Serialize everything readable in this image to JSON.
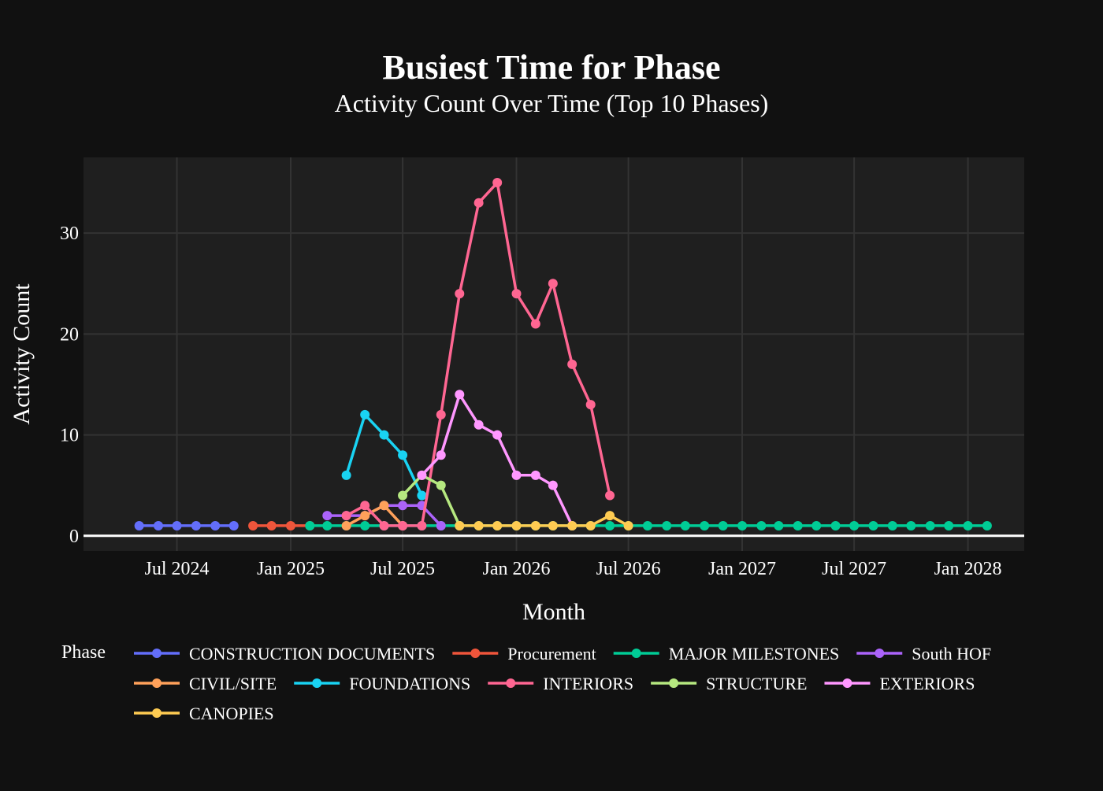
{
  "chart_data": {
    "type": "line",
    "title": "Busiest Time for Phase",
    "subtitle": "Activity Count Over Time (Top 10 Phases)",
    "xlabel": "Month",
    "ylabel": "Activity Count",
    "legend_title": "Phase",
    "legend_position": "bottom",
    "grid": true,
    "x_range": [
      "2024-02-01",
      "2028-04-01"
    ],
    "ylim": [
      -1.5,
      37.5
    ],
    "x_ticks": [
      "2024-07-01",
      "2025-01-01",
      "2025-07-01",
      "2026-01-01",
      "2026-07-01",
      "2027-01-01",
      "2027-07-01",
      "2028-01-01"
    ],
    "x_tick_labels": [
      "Jul 2024",
      "Jan 2025",
      "Jul 2025",
      "Jan 2026",
      "Jul 2026",
      "Jan 2027",
      "Jul 2027",
      "Jan 2028"
    ],
    "y_ticks": [
      0,
      10,
      20,
      30
    ],
    "y_tick_labels": [
      "0",
      "10",
      "20",
      "30"
    ],
    "series": [
      {
        "name": "CONSTRUCTION DOCUMENTS",
        "color": "#636efa",
        "x": [
          "2024-05-01",
          "2024-06-01",
          "2024-07-01",
          "2024-08-01",
          "2024-09-01",
          "2024-10-01"
        ],
        "y": [
          1,
          1,
          1,
          1,
          1,
          1
        ]
      },
      {
        "name": "Procurement",
        "color": "#EF553B",
        "x": [
          "2024-11-01",
          "2024-12-01",
          "2025-01-01",
          "2025-02-01"
        ],
        "y": [
          1,
          1,
          1,
          1
        ]
      },
      {
        "name": "MAJOR MILESTONES",
        "color": "#00cc96",
        "x": [
          "2025-02-01",
          "2025-03-01",
          "2025-04-01",
          "2025-05-01",
          "2025-06-01",
          "2025-07-01",
          "2025-08-01",
          "2025-09-01",
          "2025-10-01",
          "2025-11-01",
          "2025-12-01",
          "2026-01-01",
          "2026-02-01",
          "2026-03-01",
          "2026-04-01",
          "2026-05-01",
          "2026-06-01",
          "2026-07-01",
          "2026-08-01",
          "2026-09-01",
          "2026-10-01",
          "2026-11-01",
          "2026-12-01",
          "2027-01-01",
          "2027-02-01",
          "2027-03-01",
          "2027-04-01",
          "2027-05-01",
          "2027-06-01",
          "2027-07-01",
          "2027-08-01",
          "2027-09-01",
          "2027-10-01",
          "2027-11-01",
          "2027-12-01",
          "2028-01-01",
          "2028-02-01"
        ],
        "y": [
          1,
          1,
          1,
          1,
          1,
          1,
          1,
          1,
          1,
          1,
          1,
          1,
          1,
          1,
          1,
          1,
          1,
          1,
          1,
          1,
          1,
          1,
          1,
          1,
          1,
          1,
          1,
          1,
          1,
          1,
          1,
          1,
          1,
          1,
          1,
          1,
          1
        ]
      },
      {
        "name": "South HOF",
        "color": "#ab63fa",
        "x": [
          "2025-03-01",
          "2025-04-01",
          "2025-05-01",
          "2025-06-01",
          "2025-07-01",
          "2025-08-01",
          "2025-09-01"
        ],
        "y": [
          2,
          2,
          2,
          3,
          3,
          3,
          1
        ]
      },
      {
        "name": "CIVIL/SITE",
        "color": "#FFA15A",
        "x": [
          "2025-04-01",
          "2025-05-01",
          "2025-06-01",
          "2025-07-01"
        ],
        "y": [
          1,
          2,
          3,
          1
        ]
      },
      {
        "name": "FOUNDATIONS",
        "color": "#19d3f3",
        "x": [
          "2025-04-01",
          "2025-05-01",
          "2025-06-01",
          "2025-07-01",
          "2025-08-01"
        ],
        "y": [
          6,
          12,
          10,
          8,
          4
        ]
      },
      {
        "name": "INTERIORS",
        "color": "#FF6692",
        "x": [
          "2025-04-01",
          "2025-05-01",
          "2025-06-01",
          "2025-07-01",
          "2025-08-01",
          "2025-09-01",
          "2025-10-01",
          "2025-11-01",
          "2025-12-01",
          "2026-01-01",
          "2026-02-01",
          "2026-03-01",
          "2026-04-01",
          "2026-05-01",
          "2026-06-01"
        ],
        "y": [
          2,
          3,
          1,
          1,
          1,
          12,
          24,
          33,
          35,
          24,
          21,
          25,
          17,
          13,
          4
        ]
      },
      {
        "name": "STRUCTURE",
        "color": "#B6E880",
        "x": [
          "2025-07-01",
          "2025-08-01",
          "2025-09-01",
          "2025-10-01"
        ],
        "y": [
          4,
          6,
          5,
          1
        ]
      },
      {
        "name": "EXTERIORS",
        "color": "#FF97FF",
        "x": [
          "2025-08-01",
          "2025-09-01",
          "2025-10-01",
          "2025-11-01",
          "2025-12-01",
          "2026-01-01",
          "2026-02-01",
          "2026-03-01",
          "2026-04-01"
        ],
        "y": [
          6,
          8,
          14,
          11,
          10,
          6,
          6,
          5,
          1
        ]
      },
      {
        "name": "CANOPIES",
        "color": "#FECB52",
        "x": [
          "2025-10-01",
          "2025-11-01",
          "2025-12-01",
          "2026-01-01",
          "2026-02-01",
          "2026-03-01",
          "2026-04-01",
          "2026-05-01",
          "2026-06-01",
          "2026-07-01"
        ],
        "y": [
          1,
          1,
          1,
          1,
          1,
          1,
          1,
          1,
          2,
          1
        ]
      }
    ]
  }
}
